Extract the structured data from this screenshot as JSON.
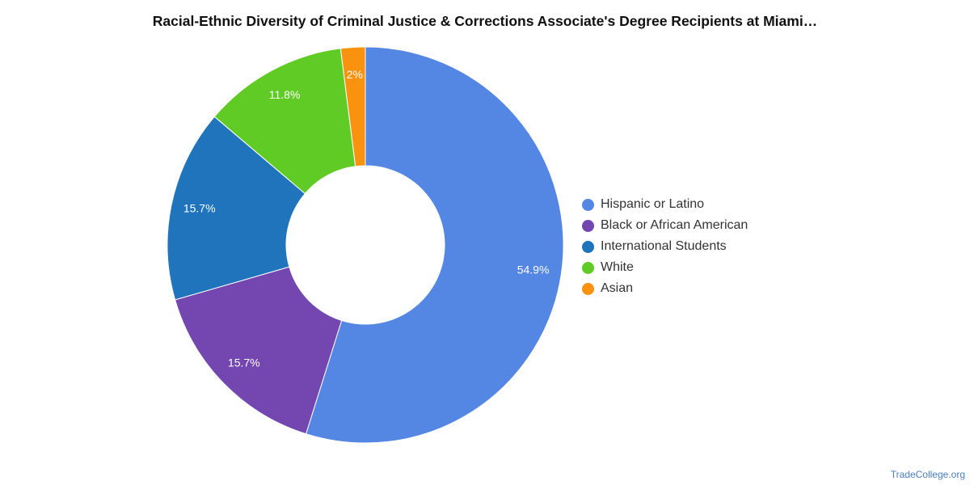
{
  "title": "Racial-Ethnic Diversity of Criminal Justice & Corrections Associate's Degree Recipients at Miami…",
  "credit": "TradeCollege.org",
  "chart_data": {
    "type": "pie",
    "donut": true,
    "title": "Racial-Ethnic Diversity of Criminal Justice & Corrections Associate's Degree Recipients at Miami…",
    "legend_position": "right",
    "series": [
      {
        "name": "Hispanic or Latino",
        "value": 54.9,
        "label": "54.9%",
        "color": "#5486e3"
      },
      {
        "name": "Black or African American",
        "value": 15.7,
        "label": "15.7%",
        "color": "#7446b0"
      },
      {
        "name": "International Students",
        "value": 15.7,
        "label": "15.7%",
        "color": "#1f74bb"
      },
      {
        "name": "White",
        "value": 11.8,
        "label": "11.8%",
        "color": "#61cb25"
      },
      {
        "name": "Asian",
        "value": 2.0,
        "label": "2%",
        "color": "#f8920f"
      }
    ]
  }
}
